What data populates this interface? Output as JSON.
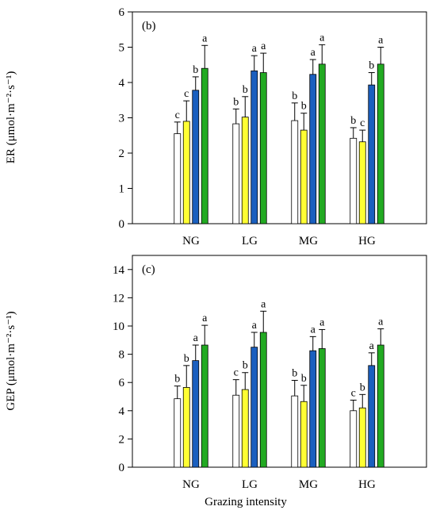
{
  "chart_data": [
    {
      "type": "bar",
      "panel_label": "(b)",
      "ylabel": "ER (μmol·m⁻²·s⁻¹)",
      "ylim": [
        0,
        6
      ],
      "yticks": [
        0,
        1,
        2,
        3,
        4,
        5,
        6
      ],
      "categories": [
        "NG",
        "LG",
        "MG",
        "HG"
      ],
      "series_colors": [
        "#ffffff",
        "#ffff33",
        "#1a5fbf",
        "#22aa22"
      ],
      "values": [
        [
          2.55,
          2.9,
          3.78,
          4.4
        ],
        [
          2.83,
          3.02,
          4.33,
          4.28
        ],
        [
          2.92,
          2.65,
          4.23,
          4.52
        ],
        [
          2.42,
          2.32,
          3.93,
          4.52
        ]
      ],
      "errors": [
        [
          0.33,
          0.58,
          0.38,
          0.65
        ],
        [
          0.42,
          0.58,
          0.43,
          0.55
        ],
        [
          0.5,
          0.48,
          0.42,
          0.55
        ],
        [
          0.3,
          0.33,
          0.35,
          0.48
        ]
      ],
      "letters": [
        [
          "c",
          "c",
          "b",
          "a"
        ],
        [
          "b",
          "b",
          "a",
          "a"
        ],
        [
          "b",
          "b",
          "a",
          "a"
        ],
        [
          "b",
          "c",
          "b",
          "a"
        ]
      ],
      "xlabel": ""
    },
    {
      "type": "bar",
      "panel_label": "(c)",
      "ylabel": "GEP (μmol·m⁻²·s⁻¹)",
      "ylim": [
        0,
        15
      ],
      "yticks": [
        0,
        2,
        4,
        6,
        8,
        10,
        12,
        14
      ],
      "categories": [
        "NG",
        "LG",
        "MG",
        "HG"
      ],
      "series_colors": [
        "#ffffff",
        "#ffff33",
        "#1a5fbf",
        "#22aa22"
      ],
      "values": [
        [
          4.85,
          5.65,
          7.55,
          8.65
        ],
        [
          5.1,
          5.5,
          8.5,
          9.55
        ],
        [
          5.05,
          4.65,
          8.25,
          8.4
        ],
        [
          4.0,
          4.2,
          7.2,
          8.65
        ]
      ],
      "errors": [
        [
          0.9,
          1.55,
          1.1,
          1.4
        ],
        [
          1.1,
          1.2,
          1.05,
          1.5
        ],
        [
          1.1,
          1.15,
          1.0,
          1.35
        ],
        [
          0.75,
          0.95,
          0.9,
          1.15
        ]
      ],
      "letters": [
        [
          "b",
          "b",
          "a",
          "a"
        ],
        [
          "c",
          "b",
          "a",
          "a"
        ],
        [
          "b",
          "b",
          "a",
          "a"
        ],
        [
          "c",
          "b",
          "a",
          "a"
        ]
      ],
      "xlabel": "Grazing intensity"
    }
  ]
}
